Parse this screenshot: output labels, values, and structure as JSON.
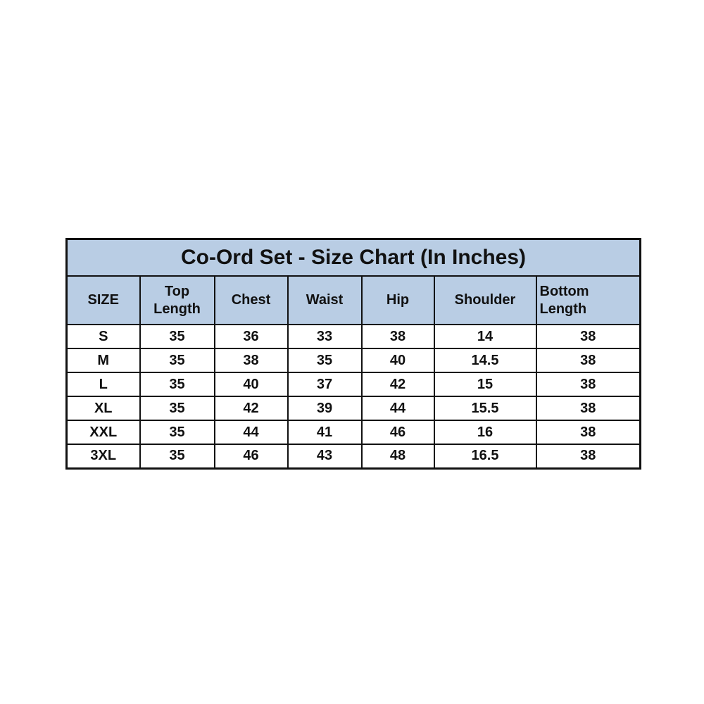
{
  "size_chart": {
    "title": "Co-Ord Set - Size Chart (In Inches)",
    "header_bg_color": "#b9cde4",
    "border_color": "#111111",
    "columns": [
      "SIZE",
      "Top\nLength",
      "Chest",
      "Waist",
      "Hip",
      "Shoulder",
      "Bottom\nLength"
    ],
    "rows": [
      {
        "size": "S",
        "values": [
          "35",
          "36",
          "33",
          "38",
          "14",
          "38"
        ]
      },
      {
        "size": "M",
        "values": [
          "35",
          "38",
          "35",
          "40",
          "14.5",
          "38"
        ]
      },
      {
        "size": "L",
        "values": [
          "35",
          "40",
          "37",
          "42",
          "15",
          "38"
        ]
      },
      {
        "size": "XL",
        "values": [
          "35",
          "42",
          "39",
          "44",
          "15.5",
          "38"
        ]
      },
      {
        "size": "XXL",
        "values": [
          "35",
          "44",
          "41",
          "46",
          "16",
          "38"
        ]
      },
      {
        "size": "3XL",
        "values": [
          "35",
          "46",
          "43",
          "48",
          "16.5",
          "38"
        ]
      }
    ]
  },
  "chart_data": {
    "type": "table",
    "title": "Co-Ord Set - Size Chart (In Inches)",
    "units": "inches",
    "columns": [
      "SIZE",
      "Top Length",
      "Chest",
      "Waist",
      "Hip",
      "Shoulder",
      "Bottom Length"
    ],
    "rows": [
      [
        "S",
        35,
        36,
        33,
        38,
        14,
        38
      ],
      [
        "M",
        35,
        38,
        35,
        40,
        14.5,
        38
      ],
      [
        "L",
        35,
        40,
        37,
        42,
        15,
        38
      ],
      [
        "XL",
        35,
        42,
        39,
        44,
        15.5,
        38
      ],
      [
        "XXL",
        35,
        44,
        41,
        46,
        16,
        38
      ],
      [
        "3XL",
        35,
        46,
        43,
        48,
        16.5,
        38
      ]
    ]
  }
}
